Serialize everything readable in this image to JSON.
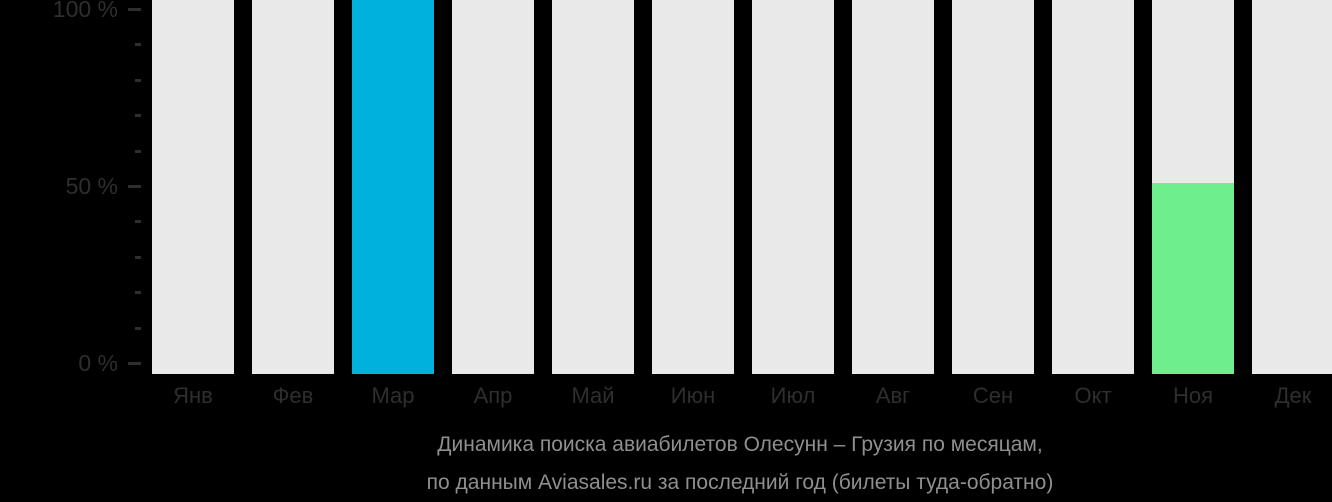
{
  "chart_data": {
    "type": "bar",
    "categories": [
      "Янв",
      "Фев",
      "Мар",
      "Апр",
      "Май",
      "Июн",
      "Июл",
      "Авг",
      "Сен",
      "Окт",
      "Ноя",
      "Дек"
    ],
    "values": [
      0,
      0,
      100,
      0,
      0,
      0,
      0,
      0,
      0,
      0,
      51,
      0
    ],
    "bar_colors": [
      "",
      "",
      "#00b1dd",
      "",
      "",
      "",
      "",
      "",
      "",
      "",
      "#6fee8d",
      ""
    ],
    "column_background_color": "#e9e9e9",
    "background_color": "#000000",
    "axis_label_color": "#2e2e2e",
    "caption_color": "#8f8f8f",
    "ylim": [
      0,
      100
    ],
    "yticks": [
      0,
      50,
      100
    ],
    "ytick_labels": [
      "0 %",
      "50 %",
      "100 %"
    ],
    "minor_tick_step": 10,
    "grid": "off",
    "legend": "none",
    "caption_lines": [
      "Динамика поиска авиабилетов Олесунн – Грузия по месяцам,",
      "по данным Aviasales.ru за последний год (билеты туда-обратно)"
    ]
  }
}
